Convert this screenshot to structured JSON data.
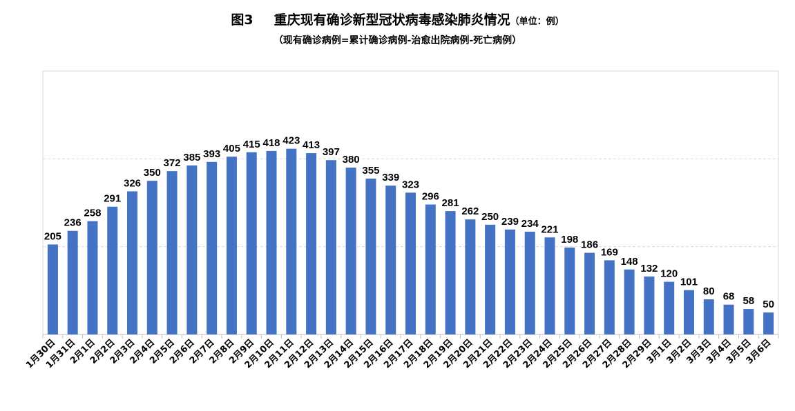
{
  "chart_data": {
    "type": "bar",
    "figure_label": "图3",
    "title": "重庆现有确诊新型冠状病毒感染肺炎情况",
    "unit": "（单位：例）",
    "subtitle": "（现有确诊病例=累计确诊病例-治愈出院病例-死亡病例）",
    "xlabel": "",
    "ylabel": "",
    "ylim": [
      0,
      600
    ],
    "grid_values": [
      200,
      400
    ],
    "grid": true,
    "bar_color": "#4472C4",
    "categories": [
      "1月30日",
      "1月31日",
      "2月1日",
      "2月2日",
      "2月3日",
      "2月4日",
      "2月5日",
      "2月6日",
      "2月7日",
      "2月8日",
      "2月9日",
      "2月10日",
      "2月11日",
      "2月12日",
      "2月13日",
      "2月14日",
      "2月15日",
      "2月16日",
      "2月17日",
      "2月18日",
      "2月19日",
      "2月20日",
      "2月21日",
      "2月22日",
      "2月23日",
      "2月24日",
      "2月25日",
      "2月26日",
      "2月27日",
      "2月28日",
      "2月29日",
      "3月1日",
      "3月2日",
      "3月3日",
      "3月4日",
      "3月5日",
      "3月6日"
    ],
    "values": [
      205,
      236,
      258,
      291,
      326,
      350,
      372,
      385,
      393,
      405,
      415,
      418,
      423,
      413,
      397,
      380,
      355,
      339,
      323,
      296,
      281,
      262,
      250,
      239,
      234,
      221,
      198,
      186,
      169,
      148,
      132,
      120,
      101,
      80,
      68,
      58,
      50
    ]
  }
}
